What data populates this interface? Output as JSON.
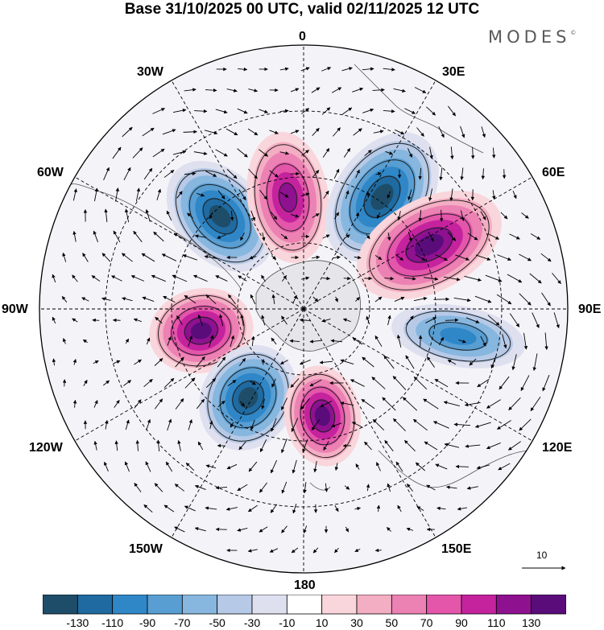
{
  "title": "Base 31/10/2025 00 UTC, valid 02/11/2025 12 UTC",
  "logo": "MODES",
  "logo_mark": "©",
  "longitude_labels": {
    "top": "0",
    "bottom": "180",
    "left": "90W",
    "right": "90E",
    "l30w": "30W",
    "l30e": "30E",
    "l60w": "60W",
    "l60e": "60E",
    "l120w": "120W",
    "l120e": "120E",
    "l150w": "150W",
    "l150e": "150E"
  },
  "vector_reference": {
    "label": "10"
  },
  "colorbar": {
    "colors": [
      "#1d4d68",
      "#1f6aa0",
      "#3087c8",
      "#589ed3",
      "#87b6df",
      "#b6c9e6",
      "#dfe0ef",
      "#ffffff",
      "#f9d6dc",
      "#f3aec3",
      "#ec82b4",
      "#e356aa",
      "#c5229e",
      "#8e1190",
      "#5a0d7a"
    ],
    "tick_labels": [
      "-130",
      "-110",
      "-90",
      "-70",
      "-50",
      "-30",
      "-10",
      "10",
      "30",
      "50",
      "70",
      "90",
      "110",
      "130"
    ]
  },
  "chart_data": {
    "type": "polar-stereographic-anomaly-map",
    "projection": "south-polar stereographic",
    "fields": [
      "shaded anomaly",
      "wind vectors"
    ],
    "anomaly_centers": [
      {
        "lon_deg": -42,
        "sign": "negative",
        "magnitude": 130
      },
      {
        "lon_deg": -8,
        "sign": "positive",
        "magnitude": 115
      },
      {
        "lon_deg": 35,
        "sign": "negative",
        "magnitude": 130
      },
      {
        "lon_deg": 63,
        "sign": "positive",
        "magnitude": 130
      },
      {
        "lon_deg": 100,
        "sign": "negative",
        "magnitude": 95
      },
      {
        "lon_deg": -102,
        "sign": "positive",
        "magnitude": 130
      },
      {
        "lon_deg": -148,
        "sign": "negative",
        "magnitude": 130
      },
      {
        "lon_deg": 170,
        "sign": "positive",
        "magnitude": 130
      }
    ]
  }
}
